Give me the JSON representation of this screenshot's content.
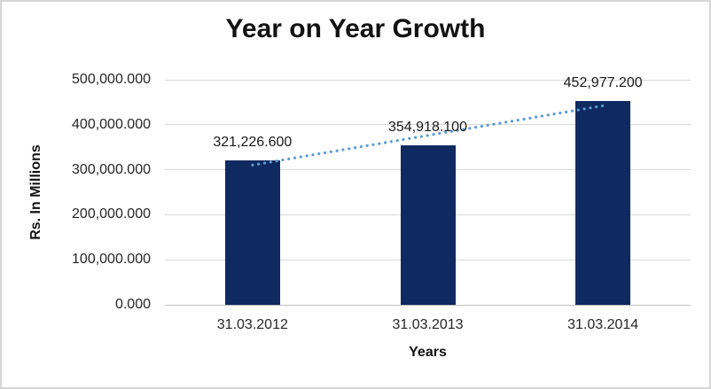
{
  "chart_data": {
    "type": "bar",
    "title": "Year on Year Growth",
    "xlabel": "Years",
    "ylabel": "Rs. In Millions",
    "categories": [
      "31.03.2012",
      "31.03.2013",
      "31.03.2014"
    ],
    "values": [
      321226.6,
      354918.1,
      452977.2
    ],
    "data_labels": [
      "321,226.600",
      "354,918.100",
      "452,977.200"
    ],
    "ylim": [
      0,
      500000
    ],
    "ytick_step": 100000,
    "ytick_labels": [
      "0.000",
      "100,000.000",
      "200,000.000",
      "300,000.000",
      "400,000.000",
      "500,000.000"
    ],
    "grid": true,
    "legend": "none",
    "bar_color": "#0f2a60",
    "gridline_color": "#d9d9d9",
    "axis_line_color": "#bfbfbf",
    "trendline": {
      "type": "linear",
      "style": "dotted",
      "color": "#5b9bd5"
    }
  }
}
